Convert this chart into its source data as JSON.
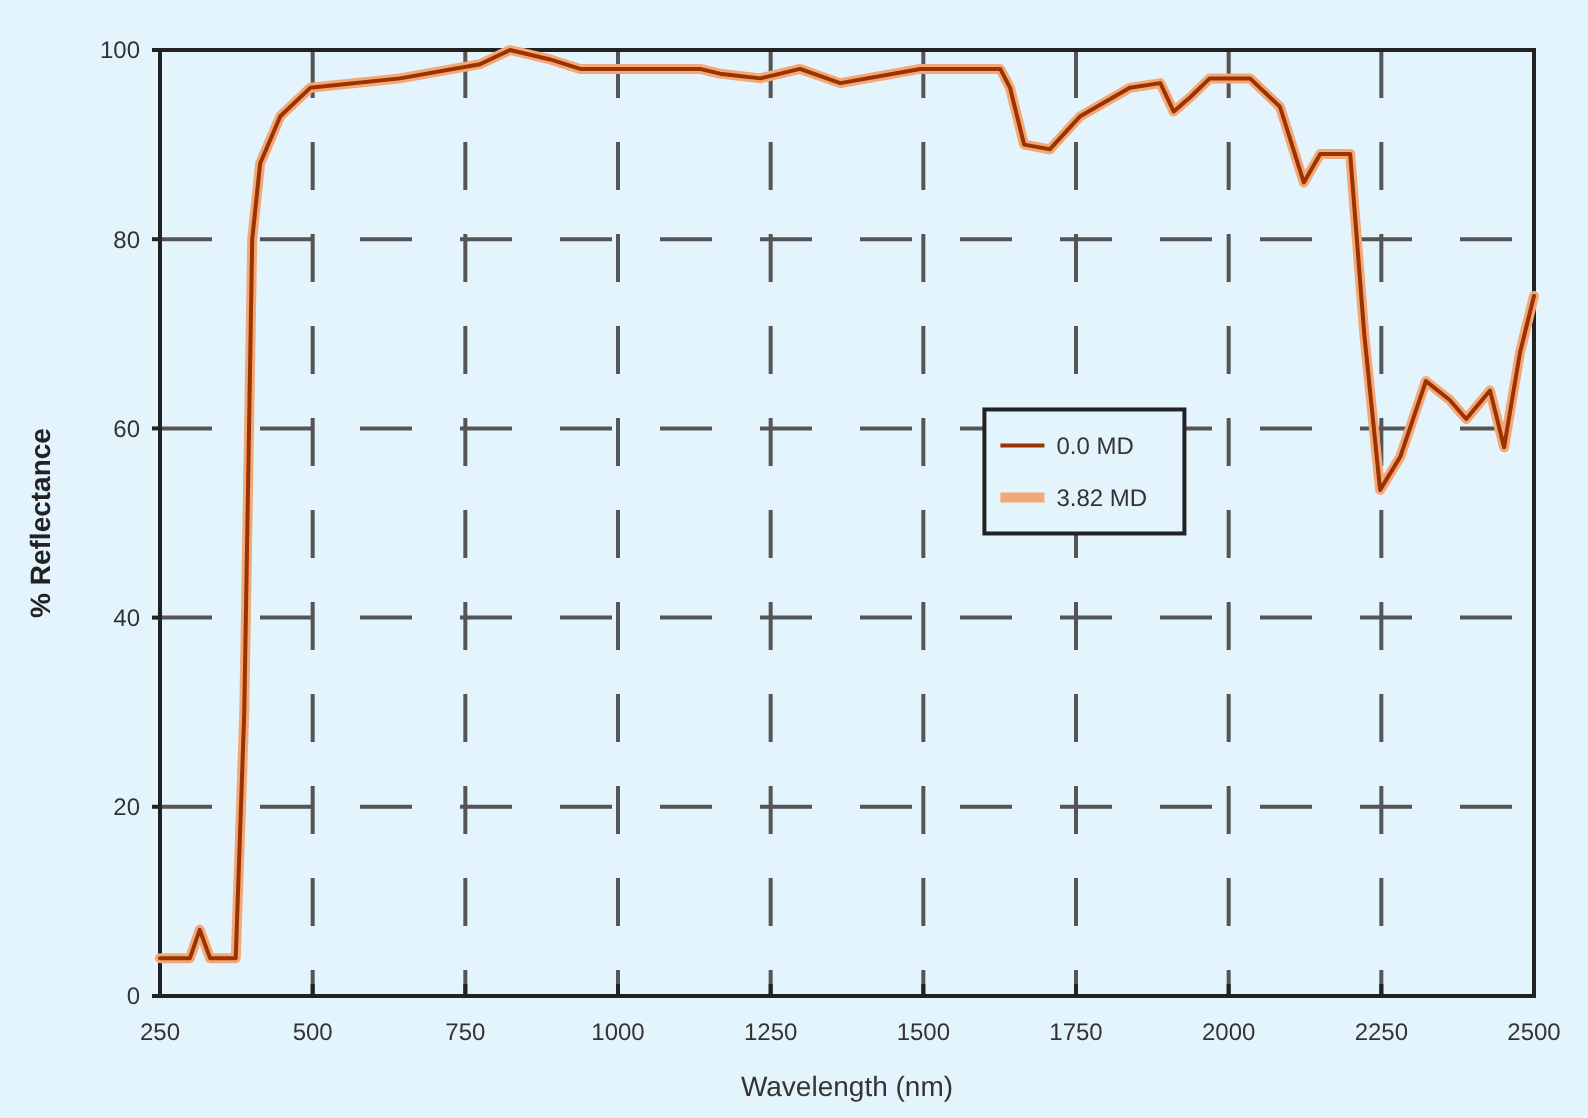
{
  "chart_data": {
    "type": "line",
    "xlabel": "Wavelength (nm)",
    "ylabel": "% Reflectance",
    "x": [
      250,
      299,
      315,
      332,
      374,
      388,
      401,
      414,
      447,
      496,
      643,
      774,
      823,
      889,
      938,
      1134,
      1167,
      1233,
      1298,
      1364,
      1495,
      1560,
      1626,
      1642,
      1665,
      1707,
      1757,
      1838,
      1888,
      1910,
      1937,
      1969,
      2035,
      2084,
      2123,
      2150,
      2199,
      2222,
      2248,
      2281,
      2323,
      2362,
      2389,
      2428,
      2451,
      2477,
      2500
    ],
    "series": [
      {
        "name": "0.0 MD",
        "color": "#993300",
        "values": [
          4,
          4,
          7,
          4,
          4,
          30,
          80,
          88,
          93,
          96,
          97,
          98.5,
          100,
          99,
          98,
          98,
          97.5,
          97,
          98,
          96.5,
          98,
          98,
          98,
          96,
          90,
          89.5,
          93,
          96,
          96.5,
          93.5,
          95,
          97,
          97,
          94,
          86,
          89,
          89,
          70,
          53.5,
          57,
          65,
          63,
          61,
          64,
          58,
          68,
          74
        ]
      },
      {
        "name": "3.82 MD",
        "color": "#f4a878",
        "values": [
          4,
          4,
          7,
          4,
          4,
          30,
          80,
          88,
          93,
          96,
          97,
          98.5,
          100,
          99,
          98,
          98,
          97.5,
          97,
          98,
          96.5,
          98,
          98,
          98,
          96,
          90,
          89.5,
          93,
          96,
          96.5,
          93.5,
          95,
          97,
          97,
          94,
          86,
          89,
          89,
          70,
          53.5,
          57,
          65,
          63,
          61,
          64,
          58,
          68,
          74
        ]
      }
    ],
    "xlim": [
      250,
      2500
    ],
    "xticks": [
      250,
      500,
      750,
      1000,
      1250,
      1500,
      1750,
      2000,
      2250,
      2500
    ],
    "ylim": [
      0,
      100
    ],
    "yticks": [
      0,
      20,
      40,
      60,
      80,
      100
    ],
    "grid": true,
    "legend": "right",
    "line_style": "solid",
    "marker": "none"
  }
}
